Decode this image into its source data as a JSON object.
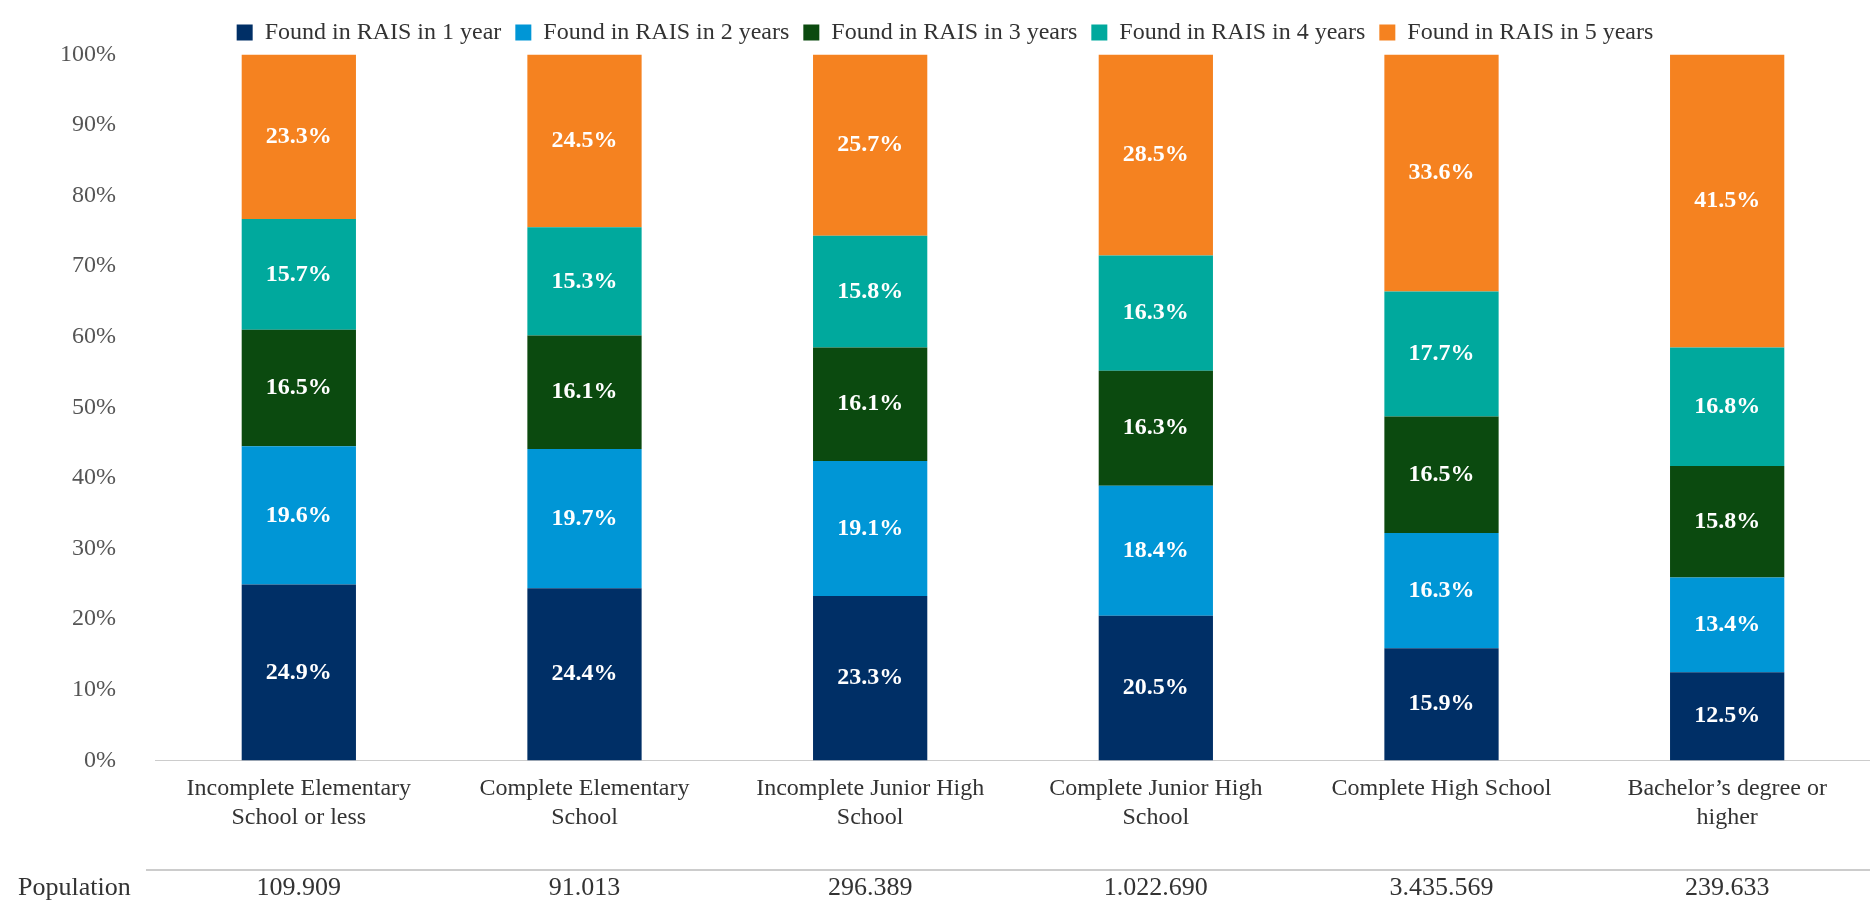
{
  "chart_data": {
    "type": "bar",
    "stacked": true,
    "categories": [
      "Incomplete Elementary School or less",
      "Complete Elementary School",
      "Incomplete Junior High School",
      "Complete Junior High School",
      "Complete High School",
      "Bachelor’s degree or higher"
    ],
    "series": [
      {
        "name": "Found in RAIS in 1 year",
        "color": "#002f66",
        "values": [
          24.9,
          24.4,
          23.3,
          20.5,
          15.9,
          12.5
        ],
        "value_labels": [
          "24.9%",
          "24.4%",
          "23.3%",
          "20.5%",
          "15.9%",
          "12.5%"
        ]
      },
      {
        "name": "Found in RAIS in 2 years",
        "color": "#0096d6",
        "values": [
          19.6,
          19.7,
          19.1,
          18.4,
          16.3,
          13.4
        ],
        "value_labels": [
          "19.6%",
          "19.7%",
          "19.1%",
          "18.4%",
          "16.3%",
          "13.4%"
        ]
      },
      {
        "name": "Found in RAIS in 3 years",
        "color": "#0b4a0f",
        "values": [
          16.5,
          16.1,
          16.1,
          16.3,
          16.5,
          15.8
        ],
        "value_labels": [
          "16.5%",
          "16.1%",
          "16.1%",
          "16.3%",
          "16.5%",
          "15.8%"
        ]
      },
      {
        "name": "Found in RAIS in 4 years",
        "color": "#00a99d",
        "values": [
          15.7,
          15.3,
          15.8,
          16.3,
          17.7,
          16.8
        ],
        "value_labels": [
          "15.7%",
          "15.3%",
          "15.8%",
          "16.3%",
          "17.7%",
          "16.8%"
        ]
      },
      {
        "name": "Found in RAIS in 5 years",
        "color": "#f58220",
        "values": [
          23.3,
          24.5,
          25.7,
          28.5,
          33.6,
          41.5
        ],
        "value_labels": [
          "23.3%",
          "24.5%",
          "25.7%",
          "28.5%",
          "33.6%",
          "41.5%"
        ]
      }
    ],
    "ylim": [
      0,
      100
    ],
    "yticks": [
      {
        "value": 0,
        "label": "0%"
      },
      {
        "value": 10,
        "label": "10%"
      },
      {
        "value": 20,
        "label": "20%"
      },
      {
        "value": 30,
        "label": "30%"
      },
      {
        "value": 40,
        "label": "40%"
      },
      {
        "value": 50,
        "label": "50%"
      },
      {
        "value": 60,
        "label": "60%"
      },
      {
        "value": 70,
        "label": "70%"
      },
      {
        "value": 80,
        "label": "80%"
      },
      {
        "value": 90,
        "label": "90%"
      },
      {
        "value": 100,
        "label": "100%"
      }
    ],
    "grid": false,
    "legend": "top",
    "annotations": [
      "Population",
      "109.909",
      "91.013",
      "296.389",
      "1.022.690",
      "3.435.569",
      "239.633"
    ]
  }
}
